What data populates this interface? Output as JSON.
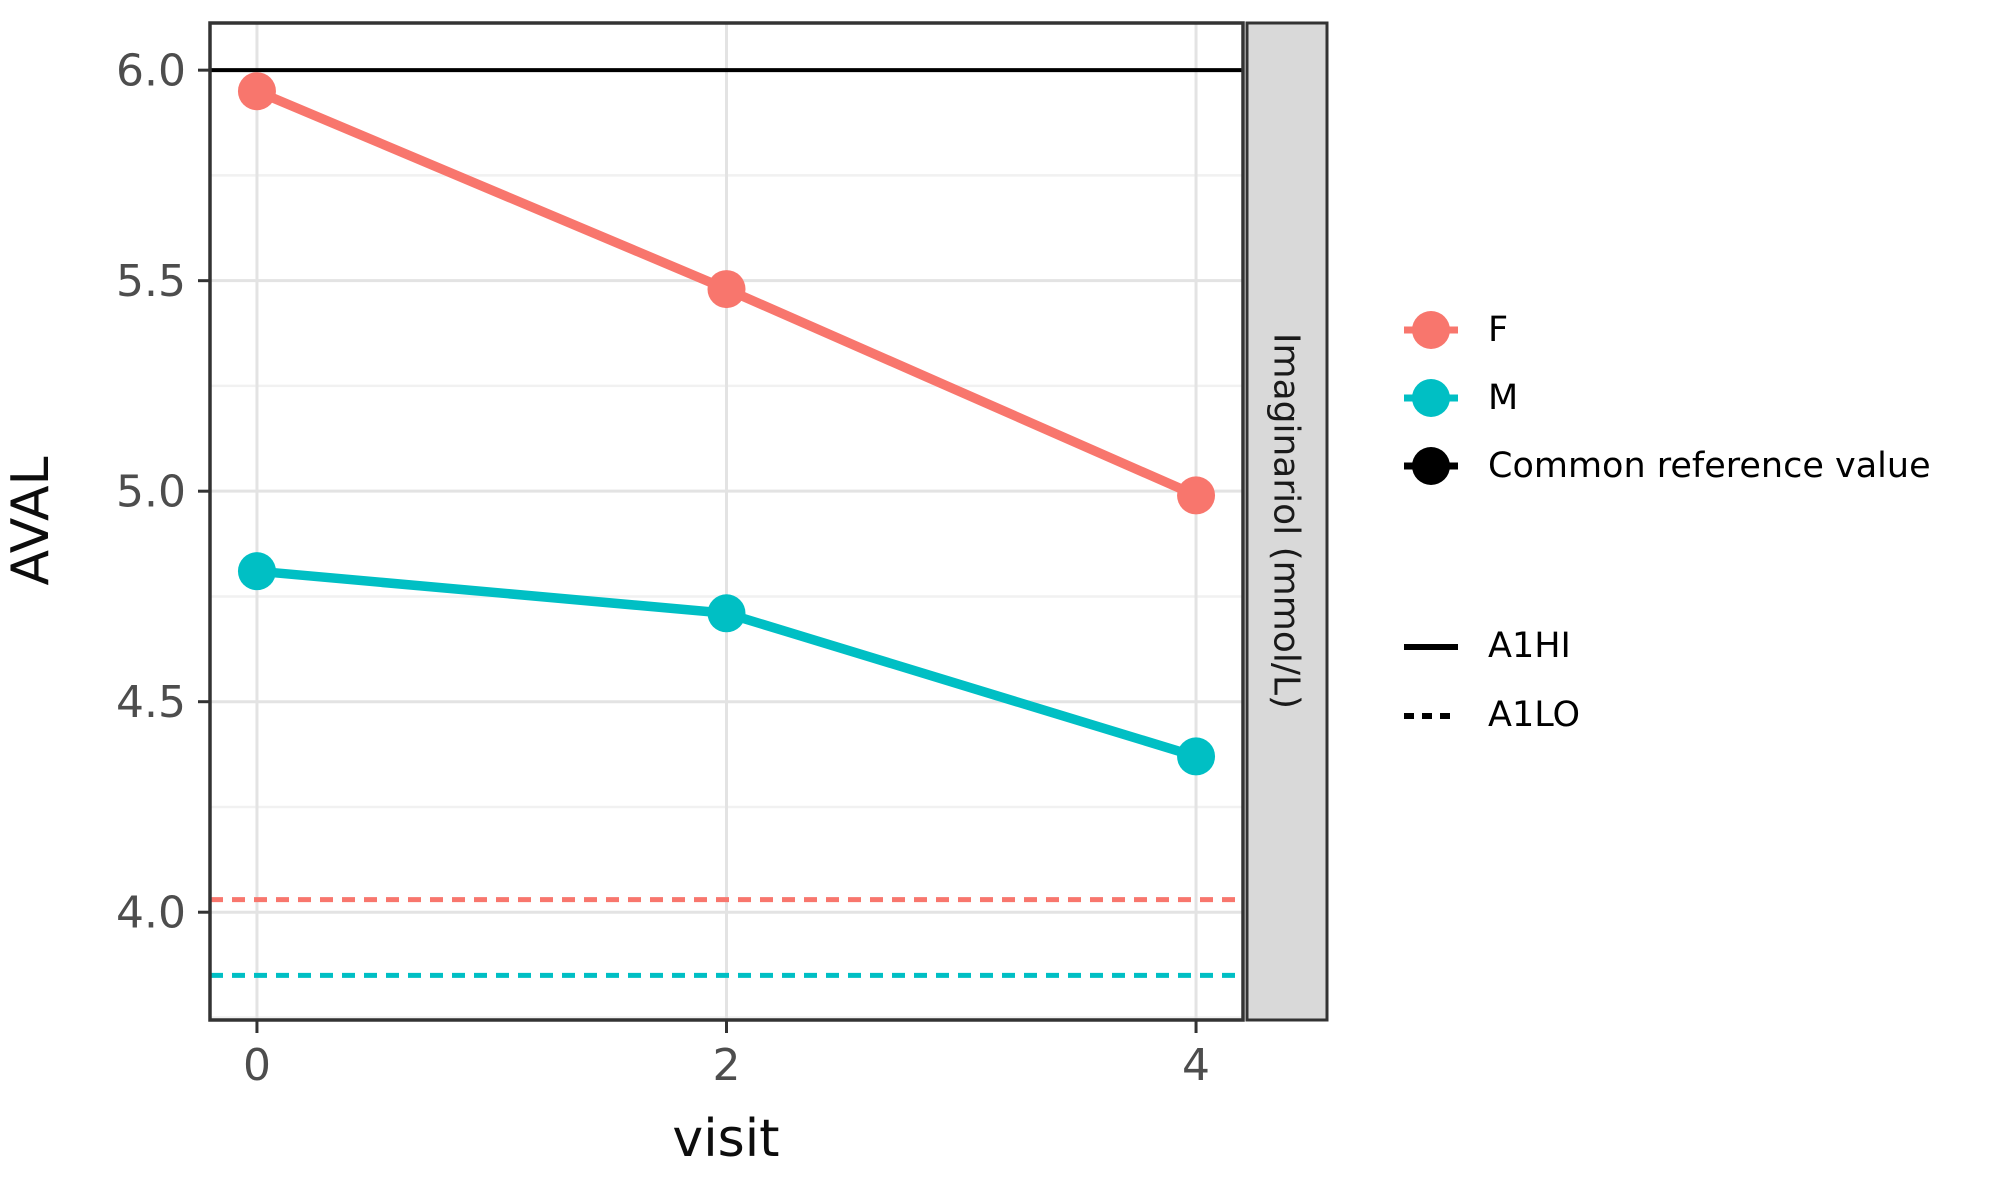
{
  "chart_data": {
    "type": "line",
    "title": "",
    "xlabel": "visit",
    "ylabel": "AVAL",
    "facet_strip_label": "Imaginariol (mmol/L)",
    "x": [
      0,
      2,
      4
    ],
    "series": [
      {
        "name": "F",
        "color": "#F8766D",
        "values": [
          5.95,
          5.48,
          4.99
        ]
      },
      {
        "name": "M",
        "color": "#00BFC4",
        "values": [
          4.81,
          4.71,
          4.37
        ]
      }
    ],
    "reference_lines": [
      {
        "label": "A1HI",
        "value": 6.0,
        "color": "#000000",
        "linetype": "solid"
      },
      {
        "label": "A1LO (F)",
        "value": 4.03,
        "color": "#F8766D",
        "linetype": "dashed"
      },
      {
        "label": "A1LO (M)",
        "value": 3.85,
        "color": "#00BFC4",
        "linetype": "dashed"
      }
    ],
    "x_ticks": [
      "0",
      "2",
      "4"
    ],
    "x_tick_values": [
      0,
      2,
      4
    ],
    "y_ticks": [
      "4.0",
      "4.5",
      "5.0",
      "5.5",
      "6.0"
    ],
    "y_tick_values": [
      4.0,
      4.5,
      5.0,
      5.5,
      6.0
    ],
    "y_minor_values": [
      3.75,
      4.25,
      4.75,
      5.25,
      5.75
    ],
    "xlim": [
      -0.2,
      4.2
    ],
    "ylim": [
      3.744,
      6.112
    ],
    "grid": "major+minor",
    "legend_position": "right"
  },
  "legend": {
    "color_group": [
      {
        "label": "F",
        "color": "#F8766D"
      },
      {
        "label": "M",
        "color": "#00BFC4"
      },
      {
        "label": "Common reference value",
        "color": "#000000"
      }
    ],
    "linetype_group": [
      {
        "label": "A1HI",
        "style": "solid",
        "color": "#000000"
      },
      {
        "label": "A1LO",
        "style": "dashed",
        "color": "#000000"
      }
    ]
  },
  "style": {
    "panel_border": "#333333",
    "grid_major": "#E3E3E3",
    "grid_minor": "#F1F1F1",
    "strip_bg": "#D9D9D9",
    "strip_text_color": "#1a1a1a",
    "tick_label_color": "#4D4D4D",
    "tick_mark_color": "#333333",
    "axis_title_color": "#0d0d0d"
  }
}
